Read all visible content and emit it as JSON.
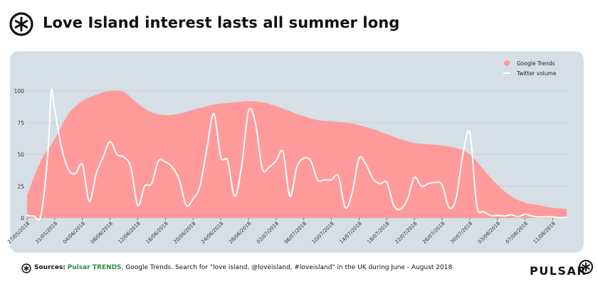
{
  "page": {
    "title": "Love Island interest lasts all summer long",
    "source_label": "Sources:",
    "source_brand": "Pulsar TRENDS",
    "source_text": ", Google Trends. Search for \"love island, @loveisland, #loveisland\" in the UK during June - August 2018",
    "brand_wordmark": "PULSAR",
    "logo_icon": "pulsar-star-icon"
  },
  "colors": {
    "area": "#ff9a9a",
    "line": "#ffffff",
    "panel": "#d5dfe5",
    "grid": "#bfcbd2",
    "brand_green": "#2e8b3a"
  },
  "chart_data": {
    "type": "area",
    "legend_position": "top-right",
    "grid": true,
    "ylim": [
      0,
      100
    ],
    "yticks": [
      0,
      25,
      50,
      75,
      100
    ],
    "xlim": [
      "2018-05-27",
      "2018-08-13"
    ],
    "xticks": [
      "27/05/2018",
      "31/05/2018",
      "04/06/2018",
      "08/06/2018",
      "12/06/2018",
      "16/06/2018",
      "20/06/2018",
      "24/06/2018",
      "28/06/2018",
      "02/07/2018",
      "06/07/2018",
      "10/07/2018",
      "14/07/2018",
      "18/07/2018",
      "22/07/2018",
      "26/07/2018",
      "30/07/2018",
      "03/08/2018",
      "07/08/2018",
      "11/08/2018"
    ],
    "series": [
      {
        "name": "Google Trends",
        "style": "area",
        "color": "#ff9a9a",
        "points": [
          [
            "2018-05-27",
            18
          ],
          [
            "2018-05-29",
            45
          ],
          [
            "2018-05-31",
            62
          ],
          [
            "2018-06-02",
            82
          ],
          [
            "2018-06-04",
            92
          ],
          [
            "2018-06-06",
            97
          ],
          [
            "2018-06-08",
            100
          ],
          [
            "2018-06-10",
            99
          ],
          [
            "2018-06-12",
            90
          ],
          [
            "2018-06-14",
            83
          ],
          [
            "2018-06-16",
            81
          ],
          [
            "2018-06-18",
            82
          ],
          [
            "2018-06-20",
            85
          ],
          [
            "2018-06-22",
            88
          ],
          [
            "2018-06-24",
            90
          ],
          [
            "2018-06-26",
            91
          ],
          [
            "2018-06-28",
            92
          ],
          [
            "2018-06-30",
            91
          ],
          [
            "2018-07-02",
            88
          ],
          [
            "2018-07-04",
            84
          ],
          [
            "2018-07-06",
            80
          ],
          [
            "2018-07-08",
            77
          ],
          [
            "2018-07-10",
            76
          ],
          [
            "2018-07-12",
            75
          ],
          [
            "2018-07-14",
            73
          ],
          [
            "2018-07-16",
            70
          ],
          [
            "2018-07-18",
            66
          ],
          [
            "2018-07-20",
            62
          ],
          [
            "2018-07-22",
            59
          ],
          [
            "2018-07-24",
            58
          ],
          [
            "2018-07-26",
            57
          ],
          [
            "2018-07-28",
            55
          ],
          [
            "2018-07-30",
            50
          ],
          [
            "2018-08-01",
            38
          ],
          [
            "2018-08-03",
            26
          ],
          [
            "2018-08-05",
            17
          ],
          [
            "2018-08-07",
            12
          ],
          [
            "2018-08-09",
            10
          ],
          [
            "2018-08-11",
            8
          ],
          [
            "2018-08-13",
            7
          ]
        ]
      },
      {
        "name": "Twitter volume",
        "style": "line",
        "color": "#ffffff",
        "points": [
          [
            "2018-05-27",
            2
          ],
          [
            "2018-05-28",
            1.5
          ],
          [
            "2018-05-29",
            2
          ],
          [
            "2018-05-30",
            50
          ],
          [
            "2018-05-30T12:00",
            100
          ],
          [
            "2018-05-31",
            85
          ],
          [
            "2018-06-01",
            55
          ],
          [
            "2018-06-02",
            38
          ],
          [
            "2018-06-03",
            35
          ],
          [
            "2018-06-04",
            42
          ],
          [
            "2018-06-05",
            13
          ],
          [
            "2018-06-06",
            35
          ],
          [
            "2018-06-07",
            48
          ],
          [
            "2018-06-08",
            60
          ],
          [
            "2018-06-09",
            50
          ],
          [
            "2018-06-10",
            48
          ],
          [
            "2018-06-11",
            40
          ],
          [
            "2018-06-12",
            10
          ],
          [
            "2018-06-13",
            25
          ],
          [
            "2018-06-14",
            27
          ],
          [
            "2018-06-15",
            45
          ],
          [
            "2018-06-16",
            44
          ],
          [
            "2018-06-17",
            40
          ],
          [
            "2018-06-18",
            30
          ],
          [
            "2018-06-19",
            10
          ],
          [
            "2018-06-20",
            15
          ],
          [
            "2018-06-21",
            25
          ],
          [
            "2018-06-22",
            55
          ],
          [
            "2018-06-23",
            82
          ],
          [
            "2018-06-24",
            48
          ],
          [
            "2018-06-25",
            45
          ],
          [
            "2018-06-26",
            17
          ],
          [
            "2018-06-27",
            40
          ],
          [
            "2018-06-28",
            84
          ],
          [
            "2018-06-29",
            75
          ],
          [
            "2018-06-30",
            39
          ],
          [
            "2018-07-01",
            40
          ],
          [
            "2018-07-02",
            45
          ],
          [
            "2018-07-03",
            52
          ],
          [
            "2018-07-04",
            17
          ],
          [
            "2018-07-05",
            40
          ],
          [
            "2018-07-06",
            47
          ],
          [
            "2018-07-07",
            45
          ],
          [
            "2018-07-08",
            30
          ],
          [
            "2018-07-09",
            30
          ],
          [
            "2018-07-10",
            30
          ],
          [
            "2018-07-11",
            33
          ],
          [
            "2018-07-12",
            8
          ],
          [
            "2018-07-13",
            20
          ],
          [
            "2018-07-14",
            47
          ],
          [
            "2018-07-15",
            42
          ],
          [
            "2018-07-16",
            31
          ],
          [
            "2018-07-17",
            27
          ],
          [
            "2018-07-18",
            28
          ],
          [
            "2018-07-19",
            10
          ],
          [
            "2018-07-20",
            7
          ],
          [
            "2018-07-21",
            15
          ],
          [
            "2018-07-22",
            32
          ],
          [
            "2018-07-23",
            25
          ],
          [
            "2018-07-24",
            27
          ],
          [
            "2018-07-25",
            28
          ],
          [
            "2018-07-26",
            26
          ],
          [
            "2018-07-27",
            8
          ],
          [
            "2018-07-28",
            15
          ],
          [
            "2018-07-29",
            50
          ],
          [
            "2018-07-30",
            67
          ],
          [
            "2018-07-31",
            10
          ],
          [
            "2018-08-01",
            5
          ],
          [
            "2018-08-02",
            2
          ],
          [
            "2018-08-03",
            2
          ],
          [
            "2018-08-04",
            1.5
          ],
          [
            "2018-08-05",
            2.5
          ],
          [
            "2018-08-06",
            1
          ],
          [
            "2018-08-07",
            3
          ],
          [
            "2018-08-08",
            1.5
          ],
          [
            "2018-08-09",
            0.8
          ],
          [
            "2018-08-10",
            1
          ],
          [
            "2018-08-11",
            0.8
          ],
          [
            "2018-08-12",
            0.3
          ],
          [
            "2018-08-13",
            0.5
          ]
        ]
      }
    ]
  }
}
